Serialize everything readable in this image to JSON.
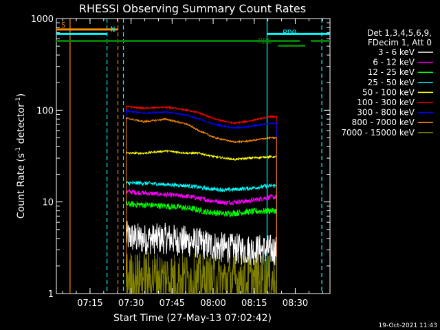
{
  "chart_data": {
    "type": "line",
    "title": "RHESSI Observing Summary Count Rates",
    "xlabel": "Start Time (27-May-13 07:02:42)",
    "ylabel_main": "Count Rate (s",
    "ylabel_sup1": "-1",
    "ylabel_mid": " detector",
    "ylabel_sup2": "-1",
    "ylabel_end": ")",
    "yscale": "log",
    "ylim": [
      1,
      1000
    ],
    "xlim_minutes": [
      0,
      100
    ],
    "x_ticks": [
      {
        "label": "07:15",
        "minute": 12.3
      },
      {
        "label": "07:30",
        "minute": 27.3
      },
      {
        "label": "07:45",
        "minute": 42.3
      },
      {
        "label": "08:00",
        "minute": 57.3
      },
      {
        "label": "08:15",
        "minute": 72.3
      },
      {
        "label": "08:30",
        "minute": 87.3
      }
    ],
    "y_ticks": [
      {
        "label": "1",
        "value": 1
      },
      {
        "label": "10",
        "value": 10
      },
      {
        "label": "100",
        "value": 100
      },
      {
        "label": "1000",
        "value": 1000
      }
    ],
    "legend_header": [
      "Det 1,3,4,5,6,9,",
      "FDecim 1, Att 0"
    ],
    "legend_placement": "right",
    "series": [
      {
        "name": "3 - 6 keV",
        "color": "#ffffff",
        "points": [
          [
            25.5,
            4.2
          ],
          [
            32,
            3.9
          ],
          [
            40,
            4.0
          ],
          [
            48,
            3.7
          ],
          [
            55,
            3.4
          ],
          [
            62,
            3.1
          ],
          [
            70,
            3.0
          ],
          [
            78,
            3.0
          ]
        ],
        "noise": 0.18
      },
      {
        "name": "6 - 12 keV",
        "color": "#ff00ff",
        "points": [
          [
            25.5,
            13
          ],
          [
            32,
            12.5
          ],
          [
            40,
            12
          ],
          [
            48,
            11.5
          ],
          [
            55,
            10.5
          ],
          [
            62,
            9.8
          ],
          [
            70,
            10.2
          ],
          [
            78,
            11.3
          ]
        ],
        "noise": 0.06
      },
      {
        "name": "12 - 25 keV",
        "color": "#00ff00",
        "points": [
          [
            25.5,
            9.5
          ],
          [
            32,
            9.3
          ],
          [
            40,
            9.0
          ],
          [
            48,
            8.6
          ],
          [
            55,
            7.8
          ],
          [
            62,
            7.4
          ],
          [
            70,
            7.8
          ],
          [
            78,
            8.0
          ]
        ],
        "noise": 0.08
      },
      {
        "name": "25 - 50 keV",
        "color": "#00ffff",
        "points": [
          [
            25.5,
            16
          ],
          [
            32,
            16
          ],
          [
            40,
            15.5
          ],
          [
            48,
            15
          ],
          [
            55,
            14
          ],
          [
            62,
            13.5
          ],
          [
            70,
            14
          ],
          [
            78,
            15
          ]
        ],
        "noise": 0.05
      },
      {
        "name": "50 - 100 keV",
        "color": "#ffff00",
        "points": [
          [
            25.5,
            34
          ],
          [
            32,
            34
          ],
          [
            40,
            36
          ],
          [
            48,
            34
          ],
          [
            52,
            34
          ],
          [
            58,
            31
          ],
          [
            65,
            29
          ],
          [
            70,
            30
          ],
          [
            78,
            31
          ]
        ],
        "noise": 0.025
      },
      {
        "name": "100 - 300 keV",
        "color": "#ff0000",
        "points": [
          [
            25.5,
            110
          ],
          [
            32,
            105
          ],
          [
            40,
            108
          ],
          [
            48,
            100
          ],
          [
            52,
            94
          ],
          [
            58,
            80
          ],
          [
            65,
            72
          ],
          [
            70,
            76
          ],
          [
            78,
            85
          ]
        ],
        "noise": 0.02
      },
      {
        "name": "300 - 800 keV",
        "color": "#0000ff",
        "points": [
          [
            25.5,
            98
          ],
          [
            32,
            93
          ],
          [
            40,
            96
          ],
          [
            48,
            88
          ],
          [
            52,
            80
          ],
          [
            58,
            70
          ],
          [
            65,
            64
          ],
          [
            70,
            66
          ],
          [
            78,
            72
          ]
        ],
        "noise": 0.02
      },
      {
        "name": "800 - 7000 keV",
        "color": "#ff8c00",
        "points": [
          [
            25.5,
            82
          ],
          [
            32,
            75
          ],
          [
            40,
            80
          ],
          [
            48,
            70
          ],
          [
            52,
            60
          ],
          [
            58,
            50
          ],
          [
            65,
            45
          ],
          [
            70,
            46
          ],
          [
            78,
            50
          ]
        ],
        "noise": 0.02
      },
      {
        "name": "7000 - 15000 keV",
        "color": "#808000",
        "points": [
          [
            25.5,
            1.5
          ],
          [
            40,
            1.5
          ],
          [
            55,
            1.4
          ],
          [
            70,
            1.4
          ],
          [
            78,
            1.4
          ]
        ],
        "noise": 0.3
      }
    ],
    "flags": [
      {
        "label": "S",
        "color": "#ff8c00",
        "y_value": 760,
        "x_start": 0,
        "x_end": 22.5,
        "label_minute": 1
      },
      {
        "label": "N",
        "color": "#00ffff",
        "y_value": 680,
        "x_start": 0,
        "x_end": 18.5,
        "label_minute": 19
      },
      {
        "label": "",
        "color": "#00ffff",
        "y_value": 680,
        "x_start": 77,
        "x_end": 100,
        "label_minute": 77
      },
      {
        "label": "RD0",
        "color": "#00ffff",
        "y_value": 630,
        "x_start": 82,
        "x_end": 82,
        "label_minute": 82
      },
      {
        "label": "",
        "color": "#008000",
        "y_value": 570,
        "x_start": 0,
        "x_end": 89,
        "label_minute": 0
      },
      {
        "label": "",
        "color": "#008000",
        "y_value": 570,
        "x_start": 93,
        "x_end": 100,
        "label_minute": 93
      },
      {
        "label": "RD6",
        "color": "#008000",
        "y_value": 505,
        "x_start": 81,
        "x_end": 91,
        "label_minute": 73
      }
    ],
    "vlines": [
      {
        "minute": 5,
        "color": "#ff8c00",
        "dashed": false
      },
      {
        "minute": 18.5,
        "color": "#00ffff",
        "dashed": true
      },
      {
        "minute": 22.5,
        "color": "#ff8c00",
        "dashed": true
      },
      {
        "minute": 24.5,
        "color": "#00ffff",
        "dashed": true
      },
      {
        "minute": 77,
        "color": "#00ffff",
        "dashed": false
      },
      {
        "minute": 97,
        "color": "#00ffff",
        "dashed": true
      }
    ],
    "data_start_minute": 25.5,
    "data_end_minute": 80.5
  },
  "footer_date": "19-Oct-2021 11:43"
}
